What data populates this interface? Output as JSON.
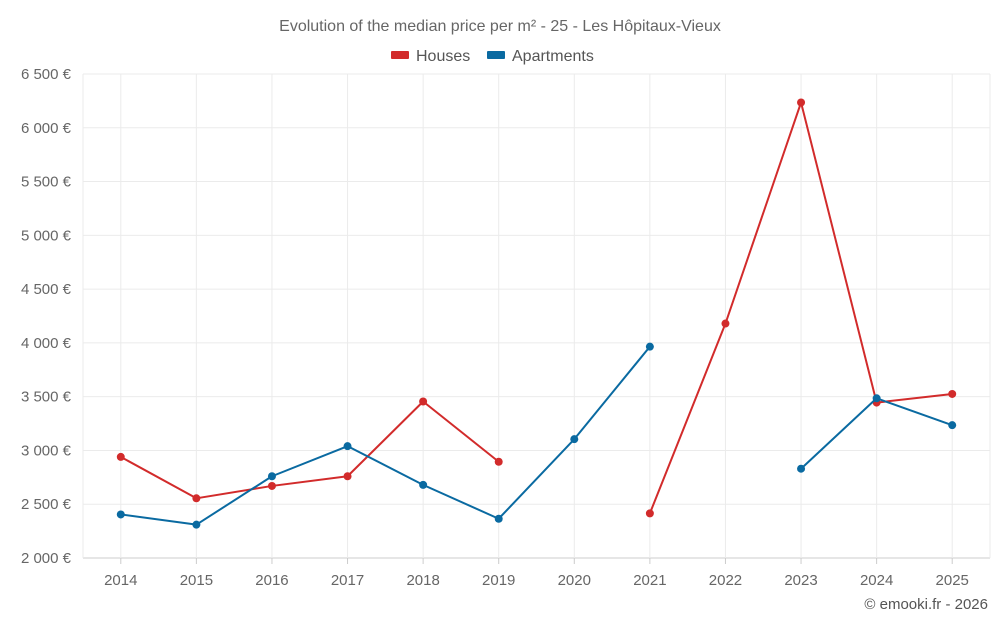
{
  "chart_data": {
    "type": "line",
    "title": "Evolution of the median price per m² - 25 - Les Hôpitaux-Vieux",
    "categories": [
      "2014",
      "2015",
      "2016",
      "2017",
      "2018",
      "2019",
      "2020",
      "2021",
      "2022",
      "2023",
      "2024",
      "2025"
    ],
    "ylim": [
      2000,
      6500
    ],
    "yticks": [
      2000,
      2500,
      3000,
      3500,
      4000,
      4500,
      5000,
      5500,
      6000,
      6500
    ],
    "ytick_labels": [
      "2 000 €",
      "2 500 €",
      "3 000 €",
      "3 500 €",
      "4 000 €",
      "4 500 €",
      "5 000 €",
      "5 500 €",
      "6 000 €",
      "6 500 €"
    ],
    "grid": true,
    "legend_position": "top-center",
    "series": [
      {
        "name": "Houses",
        "color": "#d22b2b",
        "values": [
          2940,
          2555,
          2670,
          2760,
          3455,
          2895,
          null,
          2415,
          4180,
          6235,
          3445,
          3525
        ]
      },
      {
        "name": "Apartments",
        "color": "#0a6aa1",
        "values": [
          2405,
          2310,
          2760,
          3040,
          2680,
          2365,
          3105,
          3965,
          null,
          2830,
          3485,
          3235
        ]
      }
    ]
  },
  "credit": "© emooki.fr - 2026"
}
